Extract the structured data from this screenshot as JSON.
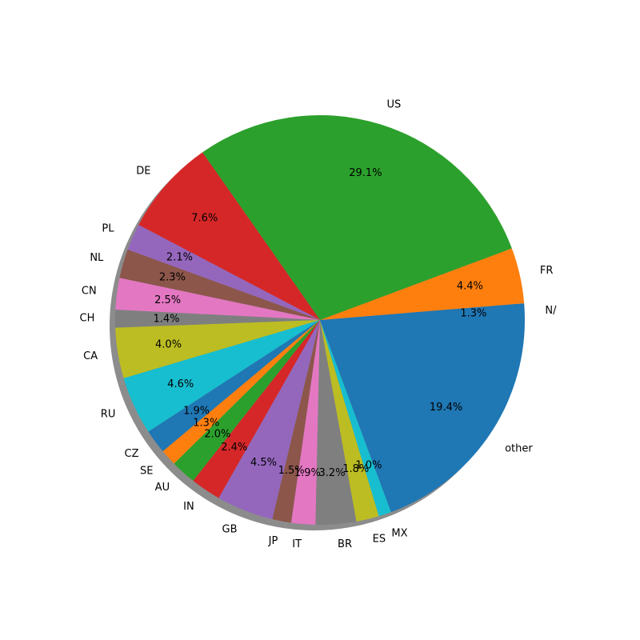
{
  "chart_data": {
    "type": "pie",
    "title": "",
    "shadow": true,
    "start_angle_deg": 0,
    "direction": "counterclockwise",
    "slices": [
      {
        "label": "N/",
        "value": 1.3,
        "pct_label": "1.3%",
        "color": "#1f77b4"
      },
      {
        "label": "FR",
        "value": 4.4,
        "pct_label": "4.4%",
        "color": "#ff7f0e"
      },
      {
        "label": "US",
        "value": 29.1,
        "pct_label": "29.1%",
        "color": "#2ca02c"
      },
      {
        "label": "DE",
        "value": 7.6,
        "pct_label": "7.6%",
        "color": "#d62728"
      },
      {
        "label": "PL",
        "value": 2.1,
        "pct_label": "2.1%",
        "color": "#9467bd"
      },
      {
        "label": "NL",
        "value": 2.3,
        "pct_label": "2.3%",
        "color": "#8c564b"
      },
      {
        "label": "CN",
        "value": 2.5,
        "pct_label": "2.5%",
        "color": "#e377c2"
      },
      {
        "label": "CH",
        "value": 1.4,
        "pct_label": "1.4%",
        "color": "#7f7f7f"
      },
      {
        "label": "CA",
        "value": 4.0,
        "pct_label": "4.0%",
        "color": "#bcbd22"
      },
      {
        "label": "RU",
        "value": 4.6,
        "pct_label": "4.6%",
        "color": "#17becf"
      },
      {
        "label": "CZ",
        "value": 1.9,
        "pct_label": "1.9%",
        "color": "#1f77b4"
      },
      {
        "label": "SE",
        "value": 1.3,
        "pct_label": "1.3%",
        "color": "#ff7f0e"
      },
      {
        "label": "AU",
        "value": 2.0,
        "pct_label": "2.0%",
        "color": "#2ca02c"
      },
      {
        "label": "IN",
        "value": 2.4,
        "pct_label": "2.4%",
        "color": "#d62728"
      },
      {
        "label": "GB",
        "value": 4.5,
        "pct_label": "4.5%",
        "color": "#9467bd"
      },
      {
        "label": "JP",
        "value": 1.5,
        "pct_label": "1.5%",
        "color": "#8c564b"
      },
      {
        "label": "IT",
        "value": 1.9,
        "pct_label": "1.9%",
        "color": "#e377c2"
      },
      {
        "label": "BR",
        "value": 3.2,
        "pct_label": "3.2%",
        "color": "#7f7f7f"
      },
      {
        "label": "ES",
        "value": 1.8,
        "pct_label": "1.8%",
        "color": "#bcbd22"
      },
      {
        "label": "MX",
        "value": 1.0,
        "pct_label": "1.0%",
        "color": "#17becf"
      },
      {
        "label": "other",
        "value": 19.4,
        "pct_label": "19.4%",
        "color": "#1f77b4"
      }
    ]
  }
}
